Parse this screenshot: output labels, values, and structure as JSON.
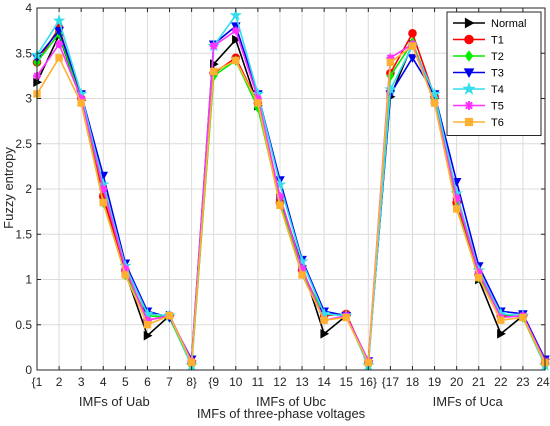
{
  "chart_data": {
    "type": "line",
    "xlabel": "IMFs of three-phase voltages",
    "ylabel": "Fuzzy entropy",
    "ylim": [
      0,
      4
    ],
    "yticks": [
      0,
      0.5,
      1,
      1.5,
      2,
      2.5,
      3,
      3.5,
      4
    ],
    "grid": true,
    "legend_position": "top-right",
    "x_tick_labels": [
      "{1",
      "2",
      "3",
      "4",
      "5",
      "6",
      "7",
      "8}",
      "{9",
      "10",
      "11",
      "12",
      "13",
      "14",
      "15",
      "16}",
      "{17",
      "18",
      "19",
      "20",
      "21",
      "22",
      "23",
      "24}"
    ],
    "group_labels": [
      {
        "text": "IMFs of Uab",
        "center": 4.5
      },
      {
        "text": "IMFs of Ubc",
        "center": 12.5
      },
      {
        "text": "IMFs of Uca",
        "center": 20.5
      }
    ],
    "series": [
      {
        "name": "Normal",
        "color": "#000000",
        "marker": "triangle-right",
        "values": [
          3.18,
          3.7,
          2.98,
          1.9,
          1.08,
          0.38,
          0.6,
          0.1,
          3.38,
          3.65,
          2.92,
          1.9,
          1.15,
          0.4,
          0.6,
          0.1,
          3.02,
          3.6,
          3.0,
          1.85,
          1.0,
          0.4,
          0.6,
          0.12
        ]
      },
      {
        "name": "T1",
        "color": "#ff0000",
        "marker": "circle",
        "values": [
          3.4,
          3.78,
          3.0,
          1.92,
          1.1,
          0.55,
          0.6,
          0.08,
          3.28,
          3.45,
          2.95,
          1.85,
          1.1,
          0.6,
          0.62,
          0.08,
          3.28,
          3.72,
          3.02,
          1.85,
          1.05,
          0.6,
          0.6,
          0.08
        ]
      },
      {
        "name": "T2",
        "color": "#00ee00",
        "marker": "diamond",
        "values": [
          3.4,
          3.72,
          2.98,
          1.85,
          1.05,
          0.6,
          0.58,
          0.05,
          3.25,
          3.42,
          2.9,
          1.85,
          1.08,
          0.62,
          0.6,
          0.05,
          3.25,
          3.62,
          3.0,
          1.8,
          1.02,
          0.62,
          0.58,
          0.05
        ]
      },
      {
        "name": "T3",
        "color": "#0000ee",
        "marker": "triangle-down",
        "values": [
          3.45,
          3.75,
          3.05,
          2.15,
          1.18,
          0.65,
          0.58,
          0.12,
          3.6,
          3.8,
          3.05,
          2.1,
          1.22,
          0.65,
          0.6,
          0.1,
          3.05,
          3.45,
          3.05,
          2.08,
          1.15,
          0.65,
          0.62,
          0.12
        ]
      },
      {
        "name": "T4",
        "color": "#33ddee",
        "marker": "star",
        "values": [
          3.48,
          3.86,
          3.05,
          2.05,
          1.15,
          0.62,
          0.6,
          0.05,
          3.58,
          3.92,
          3.05,
          2.05,
          1.2,
          0.62,
          0.6,
          0.05,
          3.1,
          3.58,
          3.05,
          1.95,
          1.1,
          0.62,
          0.6,
          0.05
        ]
      },
      {
        "name": "T5",
        "color": "#ff33ff",
        "marker": "asterisk",
        "values": [
          3.25,
          3.6,
          3.0,
          2.0,
          1.12,
          0.55,
          0.6,
          0.1,
          3.58,
          3.75,
          3.0,
          1.92,
          1.12,
          0.55,
          0.6,
          0.1,
          3.45,
          3.6,
          2.95,
          1.9,
          1.08,
          0.58,
          0.6,
          0.1
        ]
      },
      {
        "name": "T6",
        "color": "#ffb030",
        "marker": "square",
        "values": [
          3.05,
          3.45,
          2.95,
          1.85,
          1.05,
          0.5,
          0.6,
          0.08,
          3.3,
          3.42,
          2.95,
          1.82,
          1.05,
          0.55,
          0.58,
          0.08,
          3.4,
          3.58,
          2.95,
          1.78,
          1.02,
          0.55,
          0.58,
          0.08
        ]
      }
    ]
  }
}
